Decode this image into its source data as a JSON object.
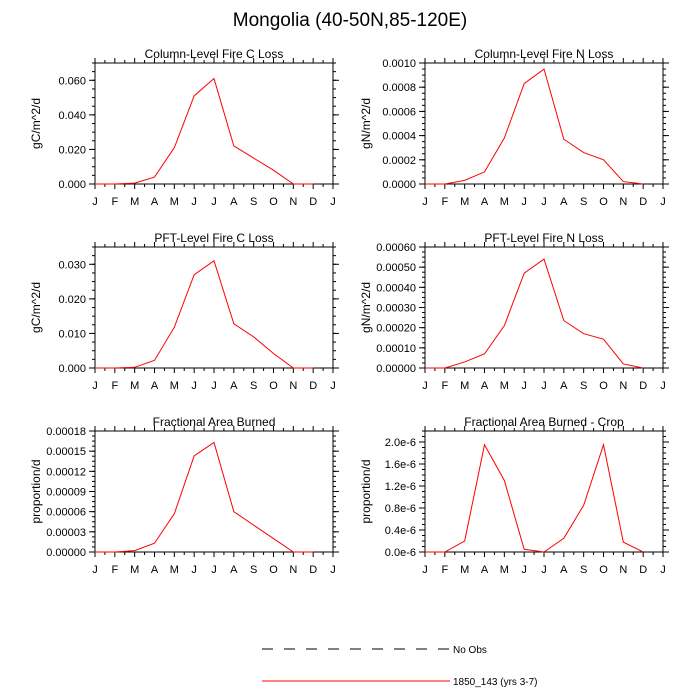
{
  "title": "Mongolia (40-50N,85-120E)",
  "months": [
    "J",
    "F",
    "M",
    "A",
    "M",
    "J",
    "J",
    "A",
    "S",
    "O",
    "N",
    "D",
    "J"
  ],
  "legend": {
    "placement": "bottom-center",
    "items": [
      {
        "label": "No Obs",
        "style": "dashed",
        "color": "#000000"
      },
      {
        "label": "1850_143 (yrs 3-7)",
        "style": "solid",
        "color": "#ff0000"
      }
    ]
  },
  "chart_data": [
    {
      "type": "line",
      "title": "Column-Level Fire C Loss",
      "ylabel": "gC/m^2/d",
      "ylim": [
        0,
        0.07
      ],
      "yticks": [
        0,
        0.02,
        0.04,
        0.06
      ],
      "ytick_labels": [
        "0.000",
        "0.020",
        "0.040",
        "0.060"
      ],
      "yminor": 0.005,
      "x": [
        1,
        2,
        3,
        4,
        5,
        6,
        7,
        8,
        9,
        10,
        11,
        12
      ],
      "series": [
        {
          "color": "#ff0000",
          "values": [
            0.0,
            0.0,
            0.0005,
            0.004,
            0.021,
            0.051,
            0.061,
            0.022,
            0.015,
            0.008,
            0.0,
            0.0
          ]
        }
      ]
    },
    {
      "type": "line",
      "title": "Column-Level Fire N Loss",
      "ylabel": "gN/m^2/d",
      "ylim": [
        0,
        0.001
      ],
      "yticks": [
        0,
        0.0002,
        0.0004,
        0.0006,
        0.0008,
        0.001
      ],
      "ytick_labels": [
        "0.0000",
        "0.0002",
        "0.0004",
        "0.0006",
        "0.0008",
        "0.0010"
      ],
      "yminor": 5e-05,
      "x": [
        1,
        2,
        3,
        4,
        5,
        6,
        7,
        8,
        9,
        10,
        11,
        12
      ],
      "series": [
        {
          "color": "#ff0000",
          "values": [
            0.0,
            0.0,
            3e-05,
            0.0001,
            0.00038,
            0.00083,
            0.00095,
            0.00037,
            0.00026,
            0.0002,
            2e-05,
            0.0
          ]
        }
      ]
    },
    {
      "type": "line",
      "title": "PFT-Level Fire C Loss",
      "ylabel": "gC/m^2/d",
      "ylim": [
        0,
        0.035
      ],
      "yticks": [
        0,
        0.01,
        0.02,
        0.03
      ],
      "ytick_labels": [
        "0.000",
        "0.010",
        "0.020",
        "0.030"
      ],
      "yminor": 0.0025,
      "x": [
        1,
        2,
        3,
        4,
        5,
        6,
        7,
        8,
        9,
        10,
        11,
        12
      ],
      "series": [
        {
          "color": "#ff0000",
          "values": [
            0.0,
            0.0,
            0.0002,
            0.0022,
            0.0118,
            0.027,
            0.031,
            0.0128,
            0.009,
            0.0042,
            0.0,
            0.0
          ]
        }
      ]
    },
    {
      "type": "line",
      "title": "PFT-Level Fire N Loss",
      "ylabel": "gN/m^2/d",
      "ylim": [
        0,
        0.0006
      ],
      "yticks": [
        0,
        0.0001,
        0.0002,
        0.0003,
        0.0004,
        0.0005,
        0.0006
      ],
      "ytick_labels": [
        "0.00000",
        "0.00010",
        "0.00020",
        "0.00030",
        "0.00040",
        "0.00050",
        "0.00060"
      ],
      "yminor": 2.5e-05,
      "x": [
        1,
        2,
        3,
        4,
        5,
        6,
        7,
        8,
        9,
        10,
        11,
        12
      ],
      "series": [
        {
          "color": "#ff0000",
          "values": [
            0.0,
            0.0,
            3e-05,
            7e-05,
            0.00021,
            0.00047,
            0.00054,
            0.000235,
            0.00017,
            0.000143,
            2e-05,
            0.0
          ]
        }
      ]
    },
    {
      "type": "line",
      "title": "Fractional Area Burned",
      "ylabel": "proportion/d",
      "ylim": [
        0,
        0.00018
      ],
      "yticks": [
        0,
        3e-05,
        6e-05,
        9e-05,
        0.00012,
        0.00015,
        0.00018
      ],
      "ytick_labels": [
        "0.00000",
        "0.00003",
        "0.00006",
        "0.00009",
        "0.00012",
        "0.00015",
        "0.00018"
      ],
      "yminor": 7.5e-06,
      "x": [
        1,
        2,
        3,
        4,
        5,
        6,
        7,
        8,
        9,
        10,
        11,
        12
      ],
      "series": [
        {
          "color": "#ff0000",
          "values": [
            0.0,
            0.0,
            2e-06,
            1.3e-05,
            5.7e-05,
            0.000143,
            0.000163,
            6e-05,
            4e-05,
            2e-05,
            0.0,
            0.0
          ]
        }
      ]
    },
    {
      "type": "line",
      "title": "Fractional Area Burned - Crop",
      "ylabel": "proportion/d",
      "ylim": [
        0,
        2.2e-06
      ],
      "yticks": [
        0,
        4e-07,
        8e-07,
        1.2e-06,
        1.6e-06,
        2e-06
      ],
      "ytick_labels": [
        "0.0e-6",
        "0.4e-6",
        "0.8e-6",
        "1.2e-6",
        "1.6e-6",
        "2.0e-6"
      ],
      "yminor": 1e-07,
      "x": [
        1,
        2,
        3,
        4,
        5,
        6,
        7,
        8,
        9,
        10,
        11,
        12
      ],
      "series": [
        {
          "color": "#ff0000",
          "values": [
            0.0,
            0.0,
            2e-07,
            1.95e-06,
            1.3e-06,
            5e-08,
            0.0,
            2.5e-07,
            8.5e-07,
            1.95e-06,
            1.8e-07,
            0.0
          ]
        }
      ]
    }
  ]
}
